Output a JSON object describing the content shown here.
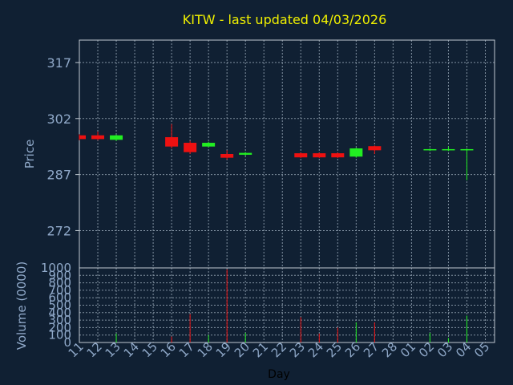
{
  "chart_data": [
    {
      "type": "candlestick",
      "title": "KITW - last updated 04/03/2026",
      "ylabel": "Price",
      "xlabel": "",
      "ylim": [
        262,
        323
      ],
      "yticks": [
        272,
        287,
        302,
        317
      ],
      "grid": true,
      "colors": {
        "up": "#22ee22",
        "down": "#ee1111",
        "title": "#f0f000",
        "axis_text": "#8fa8c8",
        "grid": "#8090a0",
        "frame": "#c0c8d0",
        "background": "#102033"
      },
      "x": [
        "11",
        "12",
        "13",
        "14",
        "15",
        "16",
        "17",
        "18",
        "19",
        "20",
        "21",
        "22",
        "23",
        "24",
        "25",
        "26",
        "27",
        "28",
        "01",
        "02",
        "03",
        "04",
        "05"
      ],
      "candles": [
        {
          "x": "11",
          "open": 297.5,
          "close": 296.5,
          "high": 297.8,
          "low": 296.2
        },
        {
          "x": "12",
          "open": 297.5,
          "close": 296.5,
          "high": 298.5,
          "low": 296.2
        },
        {
          "x": "13",
          "open": 296.3,
          "close": 297.5,
          "high": 297.7,
          "low": 296.0
        },
        {
          "x": "16",
          "open": 297.0,
          "close": 294.5,
          "high": 300.5,
          "low": 294.0
        },
        {
          "x": "17",
          "open": 295.5,
          "close": 293.0,
          "high": 296.0,
          "low": 292.5
        },
        {
          "x": "18",
          "open": 294.5,
          "close": 295.5,
          "high": 295.8,
          "low": 294.3
        },
        {
          "x": "19",
          "open": 292.5,
          "close": 291.5,
          "high": 293.5,
          "low": 291.0
        },
        {
          "x": "20",
          "open": 292.3,
          "close": 292.8,
          "high": 293.0,
          "low": 292.0
        },
        {
          "x": "23",
          "open": 292.7,
          "close": 291.6,
          "high": 292.9,
          "low": 291.4
        },
        {
          "x": "24",
          "open": 292.7,
          "close": 291.6,
          "high": 292.9,
          "low": 291.4
        },
        {
          "x": "25",
          "open": 292.7,
          "close": 291.6,
          "high": 292.9,
          "low": 291.4
        },
        {
          "x": "26",
          "open": 291.8,
          "close": 294.0,
          "high": 294.2,
          "low": 291.5
        },
        {
          "x": "27",
          "open": 294.6,
          "close": 293.5,
          "high": 294.8,
          "low": 292.5
        },
        {
          "x": "02",
          "open": 293.5,
          "close": 293.8,
          "high": 294.0,
          "low": 293.3
        },
        {
          "x": "03",
          "open": 293.5,
          "close": 293.8,
          "high": 294.5,
          "low": 293.3
        },
        {
          "x": "04",
          "open": 293.5,
          "close": 293.8,
          "high": 294.0,
          "low": 285.5
        }
      ]
    },
    {
      "type": "bar",
      "ylabel": "Volume (0000)",
      "xlabel": "Day",
      "ylim": [
        0,
        1000
      ],
      "yticks": [
        0,
        100,
        200,
        300,
        400,
        500,
        600,
        700,
        800,
        900,
        1000
      ],
      "grid": true,
      "x": [
        "11",
        "12",
        "13",
        "14",
        "15",
        "16",
        "17",
        "18",
        "19",
        "20",
        "21",
        "22",
        "23",
        "24",
        "25",
        "26",
        "27",
        "28",
        "01",
        "02",
        "03",
        "04",
        "05"
      ],
      "volumes": [
        {
          "x": "13",
          "value": 120,
          "direction": "up"
        },
        {
          "x": "16",
          "value": 80,
          "direction": "down"
        },
        {
          "x": "17",
          "value": 380,
          "direction": "down"
        },
        {
          "x": "18",
          "value": 100,
          "direction": "up"
        },
        {
          "x": "19",
          "value": 980,
          "direction": "down"
        },
        {
          "x": "20",
          "value": 130,
          "direction": "up"
        },
        {
          "x": "23",
          "value": 340,
          "direction": "down"
        },
        {
          "x": "24",
          "value": 120,
          "direction": "down"
        },
        {
          "x": "25",
          "value": 200,
          "direction": "down"
        },
        {
          "x": "26",
          "value": 270,
          "direction": "up"
        },
        {
          "x": "27",
          "value": 270,
          "direction": "down"
        },
        {
          "x": "02",
          "value": 130,
          "direction": "up"
        },
        {
          "x": "03",
          "value": 60,
          "direction": "up"
        },
        {
          "x": "04",
          "value": 360,
          "direction": "up"
        }
      ]
    }
  ]
}
